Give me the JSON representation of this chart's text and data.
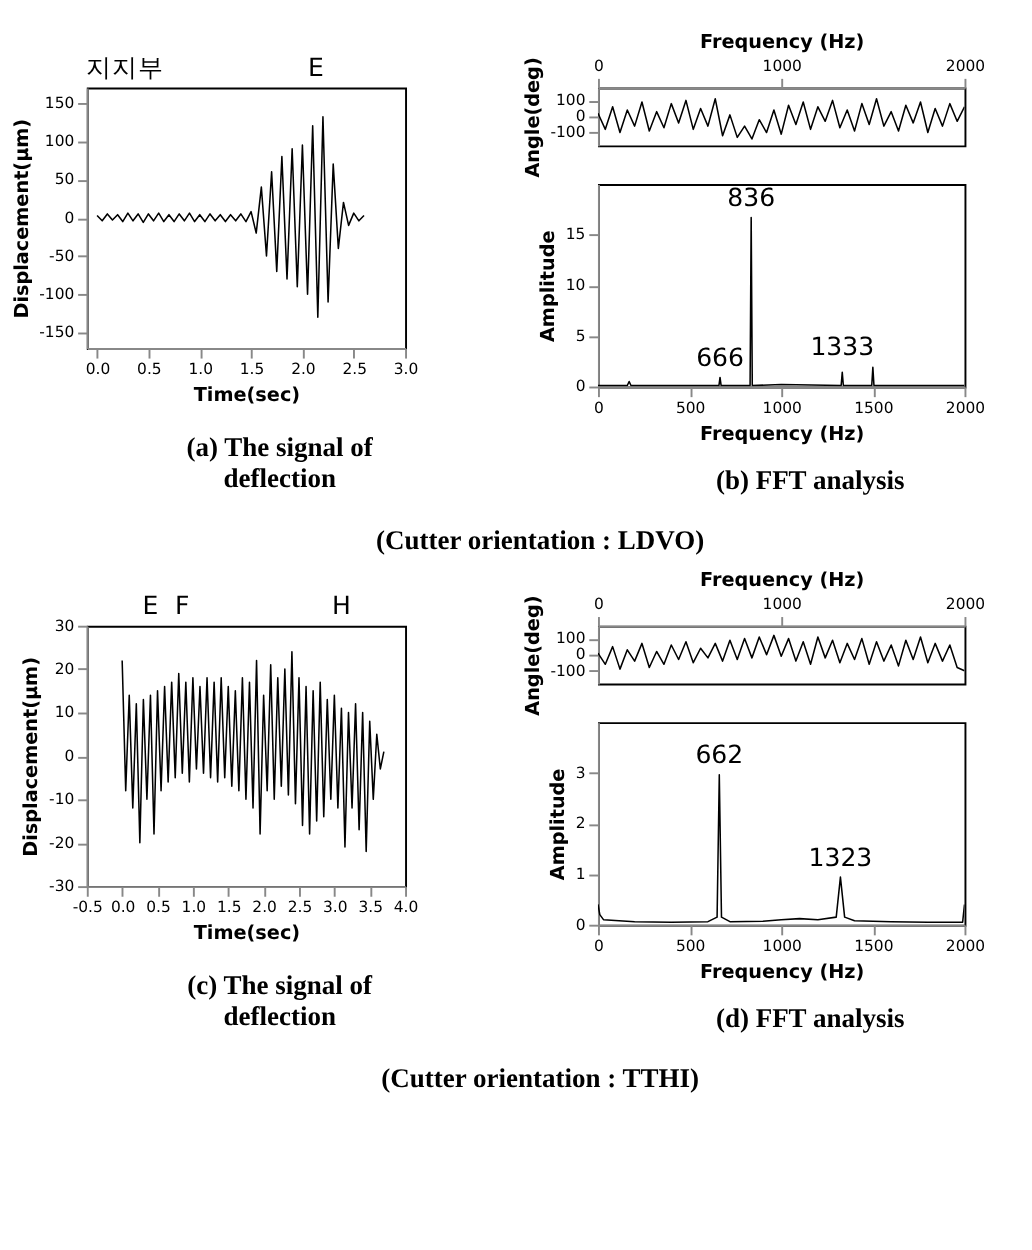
{
  "chart_data": [
    {
      "type": "line",
      "xlabel": "Time(sec)",
      "ylabel": "Displacement(μm)",
      "xlim": [
        -0.1,
        3.0
      ],
      "xticks": [
        {
          "value": 0,
          "label": "0.0"
        },
        0.5,
        {
          "value": 1,
          "label": "1.0"
        },
        1.5,
        {
          "value": 2,
          "label": "2.0"
        },
        2.5,
        {
          "value": 3,
          "label": "3.0"
        }
      ],
      "ylim": [
        -170,
        170
      ],
      "yticks": [
        -150,
        -100,
        -50,
        0,
        50,
        100,
        150
      ],
      "grid": false,
      "x": [
        0.0,
        0.05,
        0.1,
        0.15,
        0.2,
        0.25,
        0.3,
        0.35,
        0.4,
        0.45,
        0.5,
        0.55,
        0.6,
        0.65,
        0.7,
        0.75,
        0.8,
        0.85,
        0.9,
        0.95,
        1.0,
        1.05,
        1.1,
        1.15,
        1.2,
        1.25,
        1.3,
        1.35,
        1.4,
        1.45,
        1.5,
        1.55,
        1.6,
        1.65,
        1.7,
        1.75,
        1.8,
        1.85,
        1.9,
        1.95,
        2.0,
        2.05,
        2.1,
        2.15,
        2.2,
        2.25,
        2.3,
        2.35,
        2.4,
        2.45,
        2.5,
        2.55,
        2.6
      ],
      "series": [
        {
          "color": "#000000",
          "values": [
            3,
            -4,
            5,
            -3,
            4,
            -5,
            6,
            -4,
            5,
            -6,
            5,
            -4,
            6,
            -5,
            4,
            -5,
            5,
            -4,
            6,
            -5,
            4,
            -5,
            5,
            -4,
            4,
            -5,
            4,
            -4,
            5,
            -5,
            8,
            -20,
            40,
            -50,
            60,
            -70,
            80,
            -80,
            90,
            -90,
            95,
            -100,
            120,
            -130,
            132,
            -110,
            70,
            -40,
            20,
            -10,
            6,
            -4,
            3
          ]
        }
      ],
      "annotations": [
        "지지부",
        "E",
        "(a) The signal of\ndeflection"
      ]
    },
    {
      "type": "line",
      "ylabel": "Angle(deg)",
      "xlabel": "Frequency (Hz)",
      "xlim": [
        0,
        2000
      ],
      "xticks": [
        0,
        1000,
        2000
      ],
      "ylim": [
        -180,
        180
      ],
      "yticks": [
        -100,
        0,
        100
      ],
      "grid": false,
      "x": [
        0,
        40,
        80,
        120,
        160,
        200,
        240,
        280,
        320,
        360,
        400,
        440,
        480,
        520,
        560,
        600,
        640,
        680,
        720,
        760,
        800,
        840,
        880,
        920,
        960,
        1000,
        1040,
        1080,
        1120,
        1160,
        1200,
        1240,
        1280,
        1320,
        1360,
        1400,
        1440,
        1480,
        1520,
        1560,
        1600,
        1640,
        1680,
        1720,
        1760,
        1800,
        1840,
        1880,
        1920,
        1960,
        2000
      ],
      "series": [
        {
          "color": "#000000",
          "values": [
            20,
            -80,
            60,
            -100,
            40,
            -60,
            90,
            -90,
            30,
            -70,
            80,
            -40,
            100,
            -80,
            50,
            -60,
            110,
            -120,
            10,
            -130,
            -60,
            -140,
            -20,
            -100,
            40,
            -110,
            70,
            -50,
            90,
            -80,
            60,
            -30,
            100,
            -70,
            40,
            -90,
            80,
            -50,
            110,
            -60,
            30,
            -90,
            70,
            -40,
            90,
            -100,
            50,
            -60,
            80,
            -30,
            60
          ]
        }
      ]
    },
    {
      "type": "line",
      "xlabel": "Frequency (Hz)",
      "ylabel": "Amplitude",
      "xlim": [
        0,
        2000
      ],
      "xticks": [
        0,
        500,
        1000,
        1500,
        2000
      ],
      "ylim": [
        0,
        20
      ],
      "yticks": [
        0,
        5,
        10,
        15
      ],
      "grid": false,
      "x": [
        0,
        160,
        170,
        180,
        660,
        666,
        672,
        830,
        836,
        842,
        1000,
        1327,
        1333,
        1339,
        1494,
        1500,
        1506,
        2000
      ],
      "series": [
        {
          "color": "#000000",
          "values": [
            0.1,
            0.1,
            0.5,
            0.1,
            0.1,
            0.9,
            0.1,
            0.1,
            16.7,
            0.1,
            0.2,
            0.1,
            1.4,
            0.1,
            0.1,
            1.9,
            0.1,
            0.1
          ]
        }
      ],
      "annotations": [
        {
          "text": "836",
          "x": 836,
          "y": 16.7
        },
        {
          "text": "666",
          "x": 666,
          "y": 0.9
        },
        {
          "text": "1333",
          "x": 1333,
          "y": 2
        },
        "(b) FFT analysis",
        "(Cutter orientation : LDVO)"
      ]
    },
    {
      "type": "line",
      "xlabel": "Time(sec)",
      "ylabel": "Displacement(μm)",
      "xlim": [
        -0.5,
        4.0
      ],
      "xticks": [
        -0.5,
        {
          "value": 0,
          "label": "0.0"
        },
        0.5,
        {
          "value": 1,
          "label": "1.0"
        },
        1.5,
        {
          "value": 2,
          "label": "2.0"
        },
        2.5,
        {
          "value": 3,
          "label": "3.0"
        },
        3.5,
        {
          "value": 4,
          "label": "4.0"
        }
      ],
      "ylim": [
        -30,
        30
      ],
      "yticks": [
        -30,
        -20,
        -10,
        0,
        10,
        20,
        30
      ],
      "grid": false,
      "x": [
        0.0,
        0.05,
        0.1,
        0.15,
        0.2,
        0.25,
        0.3,
        0.35,
        0.4,
        0.45,
        0.5,
        0.55,
        0.6,
        0.65,
        0.7,
        0.75,
        0.8,
        0.85,
        0.9,
        0.95,
        1.0,
        1.05,
        1.1,
        1.15,
        1.2,
        1.25,
        1.3,
        1.35,
        1.4,
        1.45,
        1.5,
        1.55,
        1.6,
        1.65,
        1.7,
        1.75,
        1.8,
        1.85,
        1.9,
        1.95,
        2.0,
        2.05,
        2.1,
        2.15,
        2.2,
        2.25,
        2.3,
        2.35,
        2.4,
        2.45,
        2.5,
        2.55,
        2.6,
        2.65,
        2.7,
        2.75,
        2.8,
        2.85,
        2.9,
        2.95,
        3.0,
        3.05,
        3.1,
        3.15,
        3.2,
        3.25,
        3.3,
        3.35,
        3.4,
        3.45,
        3.5,
        3.55,
        3.6,
        3.65,
        3.7
      ],
      "series": [
        {
          "color": "#000000",
          "values": [
            22,
            -8,
            14,
            -12,
            12,
            -20,
            13,
            -10,
            14,
            -18,
            15,
            -8,
            16,
            -6,
            17,
            -5,
            19,
            -4,
            17,
            -6,
            18,
            -3,
            16,
            -4,
            18,
            -5,
            17,
            -6,
            18,
            -5,
            16,
            -7,
            15,
            -8,
            18,
            -10,
            17,
            -12,
            22,
            -18,
            14,
            -8,
            21,
            -10,
            18,
            -7,
            20,
            -9,
            24,
            -11,
            18,
            -16,
            16,
            -18,
            15,
            -15,
            17,
            -14,
            13,
            -10,
            14,
            -12,
            11,
            -21,
            10,
            -12,
            12,
            -17,
            10,
            -22,
            8,
            -10,
            5,
            -3,
            1
          ]
        }
      ],
      "annotations": [
        "E",
        "F",
        "H",
        "(c) The signal of\ndeflection"
      ]
    },
    {
      "type": "line",
      "ylabel": "Angle(deg)",
      "xlabel": "Frequency (Hz)",
      "xlim": [
        0,
        2000
      ],
      "xticks": [
        0,
        1000,
        2000
      ],
      "ylim": [
        -180,
        180
      ],
      "yticks": [
        -100,
        0,
        100
      ],
      "grid": false,
      "x": [
        0,
        40,
        80,
        120,
        160,
        200,
        240,
        280,
        320,
        360,
        400,
        440,
        480,
        520,
        560,
        600,
        640,
        680,
        720,
        760,
        800,
        840,
        880,
        920,
        960,
        1000,
        1040,
        1080,
        1120,
        1160,
        1200,
        1240,
        1280,
        1320,
        1360,
        1400,
        1440,
        1480,
        1520,
        1560,
        1600,
        1640,
        1680,
        1720,
        1760,
        1800,
        1840,
        1880,
        1920,
        1960,
        2000
      ],
      "series": [
        {
          "color": "#000000",
          "values": [
            10,
            -60,
            50,
            -90,
            30,
            -40,
            70,
            -80,
            20,
            -60,
            60,
            -30,
            80,
            -50,
            40,
            -20,
            70,
            -40,
            90,
            -30,
            100,
            -20,
            110,
            0,
            120,
            -10,
            100,
            -40,
            80,
            -60,
            110,
            -20,
            90,
            -50,
            70,
            -30,
            100,
            -60,
            80,
            -40,
            60,
            -70,
            90,
            -30,
            110,
            -50,
            70,
            -40,
            60,
            -80,
            -100
          ]
        }
      ]
    },
    {
      "type": "line",
      "xlabel": "Frequency (Hz)",
      "ylabel": "Amplitude",
      "xlim": [
        0,
        2000
      ],
      "xticks": [
        0,
        500,
        1000,
        1500,
        2000
      ],
      "ylim": [
        0,
        4
      ],
      "yticks": [
        0,
        1,
        2,
        3
      ],
      "grid": false,
      "x": [
        0,
        10,
        30,
        200,
        400,
        600,
        650,
        662,
        674,
        720,
        900,
        1000,
        1100,
        1200,
        1300,
        1323,
        1346,
        1400,
        1600,
        1800,
        1990,
        2000
      ],
      "series": [
        {
          "color": "#000000",
          "values": [
            0.4,
            0.2,
            0.1,
            0.06,
            0.05,
            0.06,
            0.15,
            2.96,
            0.15,
            0.06,
            0.07,
            0.1,
            0.12,
            0.1,
            0.15,
            0.94,
            0.15,
            0.08,
            0.06,
            0.05,
            0.05,
            0.4
          ]
        }
      ],
      "annotations": [
        {
          "text": "662",
          "x": 662,
          "y": 2.96
        },
        {
          "text": "1323",
          "x": 1323,
          "y": 0.94
        },
        "(d) FFT analysis",
        "(Cutter orientation : TTHI)"
      ]
    }
  ]
}
